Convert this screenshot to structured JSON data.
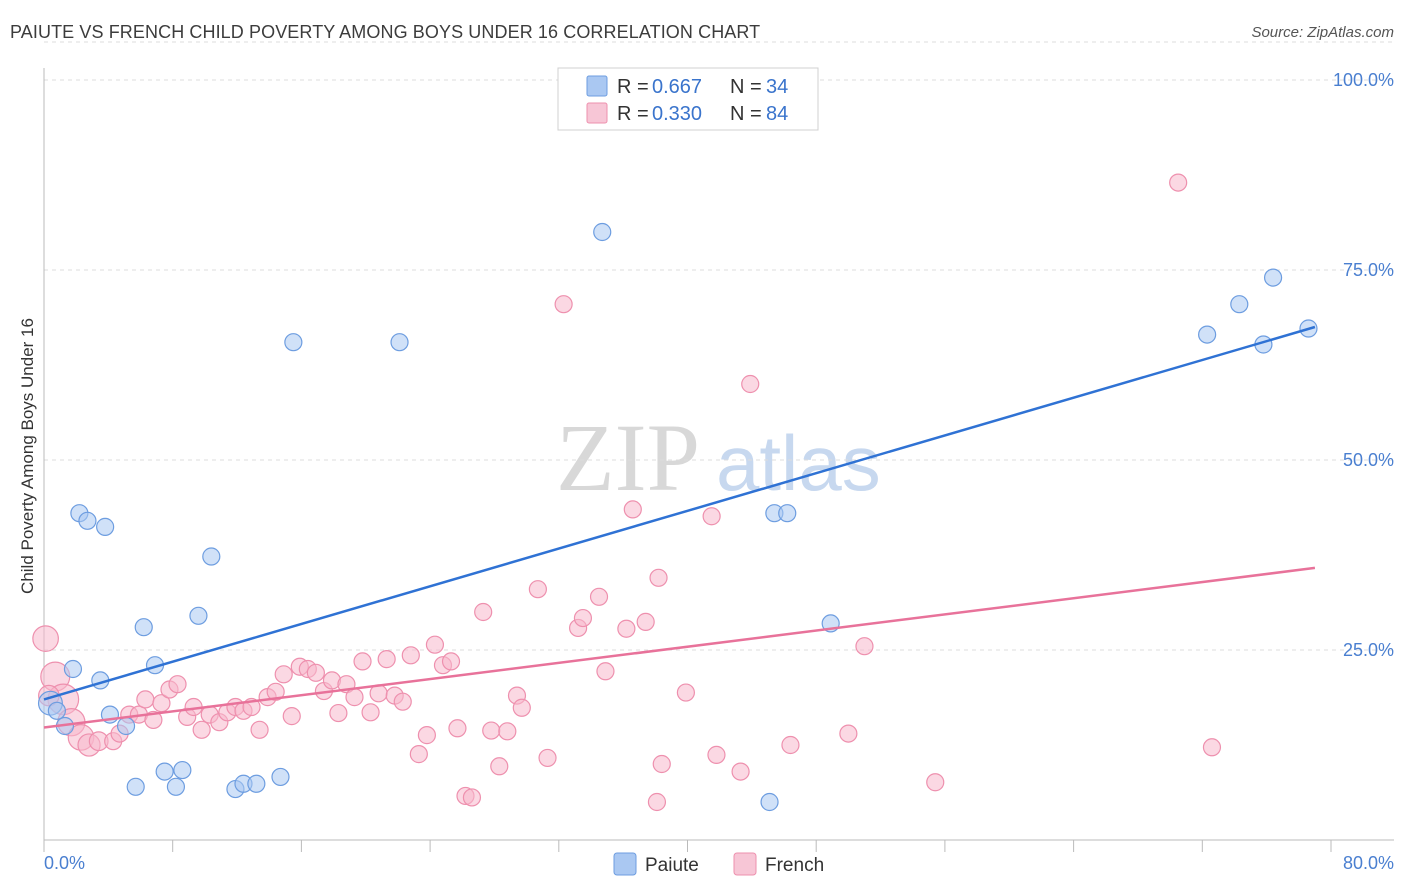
{
  "title": "PAIUTE VS FRENCH CHILD POVERTY AMONG BOYS UNDER 16 CORRELATION CHART",
  "source": "Source: ZipAtlas.com",
  "watermark": {
    "zip": "ZIP",
    "atlas": "atlas"
  },
  "colors": {
    "paiute_fill": "#aac8f2",
    "paiute_stroke": "#6d9de0",
    "paiute_line": "#2f72d4",
    "french_fill": "#f7b8cc",
    "french_stroke": "#ee90ae",
    "french_line": "#e8729a",
    "axis_text": "#4a7fd0"
  },
  "legend": {
    "r_label": "R =",
    "n_label": "N =",
    "paiute": {
      "r": "0.667",
      "n": "34"
    },
    "french": {
      "r": "0.330",
      "n": "84"
    }
  },
  "chart_data": {
    "type": "scatter",
    "title": "PAIUTE VS FRENCH CHILD POVERTY AMONG BOYS UNDER 16 CORRELATION CHART",
    "xlabel": "",
    "ylabel": "Child Poverty Among Boys Under 16",
    "xlim": [
      0,
      80
    ],
    "ylim": [
      0,
      105
    ],
    "x_tick_labels": [
      "0.0%",
      "80.0%"
    ],
    "y_tick_labels": [
      {
        "value": 25,
        "label": "25.0%"
      },
      {
        "value": 50,
        "label": "50.0%"
      },
      {
        "value": 75,
        "label": "75.0%"
      },
      {
        "value": 100,
        "label": "100.0%"
      }
    ],
    "series": [
      {
        "name": "Paiute",
        "trend": {
          "x": [
            0,
            79
          ],
          "y": [
            18.5,
            67.5
          ]
        },
        "points": [
          {
            "x": 0.4,
            "y": 18.0,
            "s": 1.4
          },
          {
            "x": 0.8,
            "y": 17.0
          },
          {
            "x": 1.3,
            "y": 15.0
          },
          {
            "x": 1.8,
            "y": 22.5
          },
          {
            "x": 2.2,
            "y": 43.0
          },
          {
            "x": 2.7,
            "y": 42.0
          },
          {
            "x": 3.5,
            "y": 21.0
          },
          {
            "x": 3.8,
            "y": 41.2
          },
          {
            "x": 4.1,
            "y": 16.5
          },
          {
            "x": 5.1,
            "y": 15.0
          },
          {
            "x": 5.7,
            "y": 7.0
          },
          {
            "x": 6.2,
            "y": 28.0
          },
          {
            "x": 6.9,
            "y": 23.0
          },
          {
            "x": 7.5,
            "y": 9.0
          },
          {
            "x": 8.2,
            "y": 7.0
          },
          {
            "x": 8.6,
            "y": 9.2
          },
          {
            "x": 9.6,
            "y": 29.5
          },
          {
            "x": 10.4,
            "y": 37.3
          },
          {
            "x": 11.9,
            "y": 6.7
          },
          {
            "x": 12.4,
            "y": 7.4
          },
          {
            "x": 13.2,
            "y": 7.4
          },
          {
            "x": 14.7,
            "y": 8.3
          },
          {
            "x": 15.5,
            "y": 65.5
          },
          {
            "x": 22.1,
            "y": 65.5
          },
          {
            "x": 34.7,
            "y": 80.0
          },
          {
            "x": 45.4,
            "y": 43.0
          },
          {
            "x": 46.2,
            "y": 43.0
          },
          {
            "x": 45.1,
            "y": 5.0
          },
          {
            "x": 48.9,
            "y": 28.5
          },
          {
            "x": 72.3,
            "y": 66.5
          },
          {
            "x": 74.3,
            "y": 70.5
          },
          {
            "x": 75.8,
            "y": 65.2
          },
          {
            "x": 76.4,
            "y": 74.0
          },
          {
            "x": 78.6,
            "y": 67.3
          }
        ]
      },
      {
        "name": "French",
        "trend": {
          "x": [
            0,
            79
          ],
          "y": [
            14.8,
            35.8
          ]
        },
        "points": [
          {
            "x": 0.1,
            "y": 26.5,
            "s": 1.5
          },
          {
            "x": 0.7,
            "y": 21.5,
            "s": 1.7
          },
          {
            "x": 1.2,
            "y": 18.5,
            "s": 1.8
          },
          {
            "x": 1.7,
            "y": 15.5,
            "s": 1.6
          },
          {
            "x": 2.3,
            "y": 13.5,
            "s": 1.5
          },
          {
            "x": 2.8,
            "y": 12.5,
            "s": 1.3
          },
          {
            "x": 3.4,
            "y": 13.0,
            "s": 1.1
          },
          {
            "x": 4.3,
            "y": 13.0
          },
          {
            "x": 4.7,
            "y": 14.0
          },
          {
            "x": 5.3,
            "y": 16.5
          },
          {
            "x": 5.9,
            "y": 16.5
          },
          {
            "x": 6.3,
            "y": 18.5
          },
          {
            "x": 6.8,
            "y": 15.8
          },
          {
            "x": 7.3,
            "y": 18.0
          },
          {
            "x": 7.8,
            "y": 19.8
          },
          {
            "x": 8.3,
            "y": 20.5
          },
          {
            "x": 8.9,
            "y": 16.2
          },
          {
            "x": 9.3,
            "y": 17.5
          },
          {
            "x": 9.8,
            "y": 14.5
          },
          {
            "x": 10.3,
            "y": 16.5
          },
          {
            "x": 10.9,
            "y": 15.5
          },
          {
            "x": 11.4,
            "y": 16.8
          },
          {
            "x": 11.9,
            "y": 17.5
          },
          {
            "x": 12.4,
            "y": 17.0
          },
          {
            "x": 12.9,
            "y": 17.5
          },
          {
            "x": 13.4,
            "y": 14.5
          },
          {
            "x": 13.9,
            "y": 18.8
          },
          {
            "x": 14.4,
            "y": 19.5
          },
          {
            "x": 14.9,
            "y": 21.8
          },
          {
            "x": 15.4,
            "y": 16.3
          },
          {
            "x": 15.9,
            "y": 22.8
          },
          {
            "x": 16.4,
            "y": 22.5
          },
          {
            "x": 16.9,
            "y": 22.0
          },
          {
            "x": 17.4,
            "y": 19.6
          },
          {
            "x": 17.9,
            "y": 21.0
          },
          {
            "x": 18.3,
            "y": 16.7
          },
          {
            "x": 18.8,
            "y": 20.5
          },
          {
            "x": 19.3,
            "y": 18.8
          },
          {
            "x": 19.8,
            "y": 23.5
          },
          {
            "x": 20.3,
            "y": 16.8
          },
          {
            "x": 20.8,
            "y": 19.3
          },
          {
            "x": 21.3,
            "y": 23.8
          },
          {
            "x": 21.8,
            "y": 19.0
          },
          {
            "x": 22.3,
            "y": 18.2
          },
          {
            "x": 22.8,
            "y": 24.3
          },
          {
            "x": 23.3,
            "y": 11.3
          },
          {
            "x": 23.8,
            "y": 13.8
          },
          {
            "x": 24.3,
            "y": 25.7
          },
          {
            "x": 24.8,
            "y": 23.0
          },
          {
            "x": 25.3,
            "y": 23.5
          },
          {
            "x": 25.7,
            "y": 14.7
          },
          {
            "x": 26.2,
            "y": 5.8
          },
          {
            "x": 26.6,
            "y": 5.6
          },
          {
            "x": 27.3,
            "y": 30.0
          },
          {
            "x": 27.8,
            "y": 14.4
          },
          {
            "x": 28.3,
            "y": 9.7
          },
          {
            "x": 28.8,
            "y": 14.3
          },
          {
            "x": 29.4,
            "y": 19.0
          },
          {
            "x": 29.7,
            "y": 17.4
          },
          {
            "x": 30.7,
            "y": 33.0
          },
          {
            "x": 31.3,
            "y": 10.8
          },
          {
            "x": 32.3,
            "y": 70.5
          },
          {
            "x": 33.2,
            "y": 27.9
          },
          {
            "x": 33.5,
            "y": 29.2
          },
          {
            "x": 34.5,
            "y": 32.0
          },
          {
            "x": 34.9,
            "y": 22.2
          },
          {
            "x": 36.2,
            "y": 27.8
          },
          {
            "x": 36.6,
            "y": 43.5
          },
          {
            "x": 37.4,
            "y": 28.7
          },
          {
            "x": 38.2,
            "y": 34.5
          },
          {
            "x": 38.4,
            "y": 10.0
          },
          {
            "x": 38.1,
            "y": 5.0
          },
          {
            "x": 39.9,
            "y": 19.4
          },
          {
            "x": 41.5,
            "y": 42.6
          },
          {
            "x": 41.8,
            "y": 11.2
          },
          {
            "x": 43.3,
            "y": 9.0
          },
          {
            "x": 43.9,
            "y": 60.0
          },
          {
            "x": 46.4,
            "y": 12.5
          },
          {
            "x": 50.0,
            "y": 14.0
          },
          {
            "x": 51.0,
            "y": 25.5
          },
          {
            "x": 55.4,
            "y": 7.6
          },
          {
            "x": 70.5,
            "y": 86.5
          },
          {
            "x": 72.6,
            "y": 12.2
          },
          {
            "x": 0.3,
            "y": 19.0,
            "s": 1.2
          }
        ]
      }
    ]
  }
}
